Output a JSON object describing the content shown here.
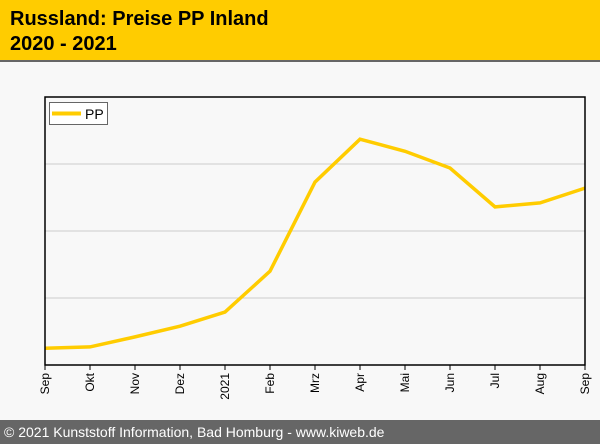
{
  "header": {
    "title": "Russland: Preise PP Inland",
    "subtitle": "2020 - 2021"
  },
  "footer": {
    "text": "© 2021 Kunststoff Information, Bad Homburg - www.kiweb.de"
  },
  "chart_data": {
    "type": "line",
    "title": "Russland: Preise PP Inland 2020 - 2021",
    "categories": [
      "Sep",
      "Okt",
      "Nov",
      "Dez",
      "2021",
      "Feb",
      "Mrz",
      "Apr",
      "Mai",
      "Jun",
      "Jul",
      "Aug",
      "Sep"
    ],
    "series": [
      {
        "name": "PP",
        "color": "#ffcc00",
        "values": [
          0.25,
          0.27,
          0.42,
          0.58,
          0.79,
          1.4,
          2.73,
          3.37,
          3.19,
          2.94,
          2.36,
          2.42,
          2.64
        ]
      }
    ],
    "ylim": [
      0,
      4
    ],
    "grid": true,
    "legend": "top-left",
    "xlabel": "",
    "ylabel": ""
  }
}
